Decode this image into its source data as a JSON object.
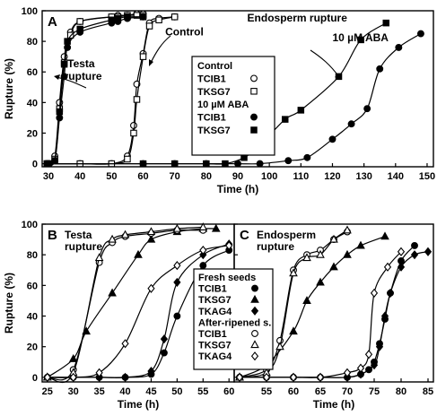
{
  "chart_data": [
    {
      "type": "line",
      "panel_label": "A",
      "xlabel": "Time (h)",
      "ylabel": "Rupture (%)",
      "xlim": [
        28,
        152
      ],
      "ylim": [
        -2,
        100
      ],
      "xticks": [
        30,
        40,
        50,
        60,
        70,
        80,
        90,
        100,
        110,
        120,
        130,
        140,
        150
      ],
      "yticks": [
        0,
        20,
        40,
        60,
        80,
        100
      ],
      "grid": false,
      "legend_position": "center",
      "legend": {
        "groups": [
          {
            "title": "Control",
            "entries": [
              {
                "label": "TCIB1",
                "marker": "circle-open"
              },
              {
                "label": "TKSG7",
                "marker": "square-open"
              }
            ]
          },
          {
            "title": "10 µM ABA",
            "entries": [
              {
                "label": "TCIB1",
                "marker": "circle-filled"
              },
              {
                "label": "TKSG7",
                "marker": "square-filled"
              }
            ]
          }
        ]
      },
      "annotations": [
        {
          "text": "Testa",
          "x": 36,
          "y": 63
        },
        {
          "text": "rupture",
          "x": 35,
          "y": 55
        },
        {
          "text": "Control",
          "x": 67,
          "y": 84
        },
        {
          "text": "Endosperm rupture",
          "x": 93,
          "y": 93
        },
        {
          "text": "10 µM ABA",
          "x": 120,
          "y": 80
        }
      ],
      "series": [
        {
          "name": "Control TCIB1 testa",
          "marker": "circle-open",
          "x": [
            29.5,
            32,
            33.5,
            35,
            37,
            40,
            50,
            52,
            55,
            58,
            60
          ],
          "y": [
            0,
            5,
            40,
            70,
            86,
            93,
            96,
            97,
            97,
            98,
            98
          ]
        },
        {
          "name": "Control TKSG7 testa",
          "marker": "square-open",
          "x": [
            29.5,
            32,
            33.5,
            35,
            37,
            40,
            50,
            52,
            55,
            58,
            60
          ],
          "y": [
            0,
            3,
            36,
            66,
            84,
            93,
            96,
            96,
            97,
            97,
            97
          ]
        },
        {
          "name": "Control TCIB1 endosperm",
          "marker": "circle-open",
          "x": [
            30,
            40,
            50,
            55,
            57,
            58,
            60,
            62,
            65,
            70
          ],
          "y": [
            0,
            0,
            0,
            5,
            25,
            52,
            72,
            92,
            95,
            96
          ]
        },
        {
          "name": "Control TKSG7 endosperm",
          "marker": "square-open",
          "x": [
            30,
            40,
            50,
            55,
            57,
            58,
            60,
            62,
            65,
            70
          ],
          "y": [
            0,
            0,
            0,
            3,
            20,
            42,
            70,
            90,
            94,
            96
          ]
        },
        {
          "name": "10 µM ABA TCIB1 testa",
          "marker": "circle-filled",
          "x": [
            29.5,
            32,
            33.5,
            35,
            36,
            40,
            50,
            52,
            55,
            60
          ],
          "y": [
            0,
            2,
            30,
            57,
            76,
            86,
            92,
            93,
            95,
            96
          ]
        },
        {
          "name": "10 µM ABA TKSG7 testa",
          "marker": "square-filled",
          "x": [
            29.5,
            32,
            33.5,
            35,
            36,
            40,
            50,
            52,
            55,
            60
          ],
          "y": [
            0,
            2,
            34,
            65,
            80,
            88,
            94,
            95,
            96,
            96
          ]
        },
        {
          "name": "10 µM ABA TCIB1 endosperm",
          "marker": "circle-filled",
          "x": [
            30,
            60,
            70,
            80,
            90,
            97,
            106,
            112,
            120,
            126,
            131,
            135,
            141,
            148
          ],
          "y": [
            0,
            0,
            0,
            0,
            0,
            0,
            2,
            4,
            16,
            26,
            36,
            62,
            76,
            85
          ]
        },
        {
          "name": "10 µM ABA TKSG7 endosperm",
          "marker": "square-filled",
          "x": [
            30,
            60,
            70,
            80,
            86,
            92,
            97,
            105,
            110,
            122,
            129,
            137
          ],
          "y": [
            0,
            0,
            0,
            0,
            0,
            4,
            12,
            29,
            35,
            57,
            81,
            92
          ]
        }
      ]
    },
    {
      "type": "line",
      "panel_label": "B",
      "title_lines": [
        "Testa",
        "rupture"
      ],
      "xlabel": "Time (h)",
      "ylabel": "Rupture (%)",
      "xlim": [
        24,
        61
      ],
      "ylim": [
        -3,
        100
      ],
      "xticks": [
        25,
        30,
        35,
        40,
        45,
        50,
        55,
        60
      ],
      "yticks": [
        0,
        20,
        40,
        60,
        80,
        100
      ],
      "grid": false,
      "series": [
        {
          "name": "Fresh seeds TCIB1",
          "marker": "circle-filled",
          "x": [
            25,
            30,
            35,
            40,
            45,
            47.5,
            50,
            55,
            60
          ],
          "y": [
            0,
            0,
            0,
            0,
            2,
            16,
            40,
            73,
            83
          ]
        },
        {
          "name": "Fresh seeds TKSG7",
          "marker": "triangle-filled",
          "x": [
            25,
            30,
            32.5,
            37.5,
            42.5,
            45,
            50,
            55,
            57.5
          ],
          "y": [
            0,
            12,
            30,
            55,
            80,
            90,
            95,
            97,
            97
          ]
        },
        {
          "name": "Fresh seeds TKAG4",
          "marker": "diamond-filled",
          "x": [
            25,
            30,
            35,
            40,
            45,
            47.5,
            50,
            55,
            60
          ],
          "y": [
            0,
            0,
            0,
            0,
            4,
            25,
            62,
            80,
            87
          ]
        },
        {
          "name": "After-ripened s. TCIB1",
          "marker": "circle-open",
          "x": [
            25,
            30,
            35,
            37.5,
            40,
            45,
            50,
            55
          ],
          "y": [
            0,
            5,
            75,
            88,
            92,
            94,
            96,
            96
          ]
        },
        {
          "name": "After-ripened s. TKSG7",
          "marker": "triangle-open",
          "x": [
            25,
            30,
            35,
            37.5,
            40,
            45,
            50,
            55
          ],
          "y": [
            0,
            3,
            78,
            90,
            93,
            95,
            97,
            98
          ]
        },
        {
          "name": "After-ripened s. TKAG4",
          "marker": "diamond-open",
          "x": [
            25,
            30,
            35,
            40,
            45,
            50,
            55,
            60
          ],
          "y": [
            0,
            0,
            3,
            22,
            58,
            73,
            83,
            86
          ]
        }
      ]
    },
    {
      "type": "line",
      "panel_label": "C",
      "title_lines": [
        "Endosperm",
        "rupture"
      ],
      "xlabel": "Time (h)",
      "xlim": [
        49,
        86
      ],
      "ylim": [
        -3,
        100
      ],
      "xticks": [
        50,
        55,
        60,
        65,
        70,
        75,
        80,
        85
      ],
      "yticks": [
        0,
        20,
        40,
        60,
        80,
        100
      ],
      "grid": false,
      "legend_position": "left",
      "legend": {
        "groups": [
          {
            "title": "Fresh seeds",
            "entries": [
              {
                "label": "TCIB1",
                "marker": "circle-filled"
              },
              {
                "label": "TKSG7",
                "marker": "triangle-filled"
              },
              {
                "label": "TKAG4",
                "marker": "diamond-filled"
              }
            ]
          },
          {
            "title": "After-ripened s.",
            "entries": [
              {
                "label": "TCIB1",
                "marker": "circle-open"
              },
              {
                "label": "TKSG7",
                "marker": "triangle-open"
              },
              {
                "label": "TKAG4",
                "marker": "diamond-open"
              }
            ]
          }
        ]
      },
      "series": [
        {
          "name": "Fresh seeds TCIB1",
          "marker": "circle-filled",
          "x": [
            50,
            55,
            60,
            65,
            70,
            72.5,
            74,
            75,
            76,
            77,
            78,
            80,
            82.5
          ],
          "y": [
            0,
            0,
            0,
            0,
            0,
            2,
            5,
            10,
            22,
            38,
            55,
            76,
            86
          ]
        },
        {
          "name": "Fresh seeds TKSG7",
          "marker": "triangle-filled",
          "x": [
            50,
            55,
            60,
            62.5,
            65,
            67.5,
            70,
            72.5,
            77
          ],
          "y": [
            0,
            8,
            30,
            50,
            62,
            72,
            80,
            86,
            92
          ]
        },
        {
          "name": "Fresh seeds TKAG4",
          "marker": "diamond-filled",
          "x": [
            50,
            55,
            60,
            65,
            70,
            72.5,
            75,
            76,
            77,
            78,
            80,
            82.5,
            85
          ],
          "y": [
            0,
            0,
            0,
            0,
            0,
            2,
            8,
            20,
            40,
            55,
            72,
            80,
            82
          ]
        },
        {
          "name": "After-ripened s. TCIB1",
          "marker": "circle-open",
          "x": [
            50,
            55,
            57.5,
            60,
            62.5,
            65,
            67.5,
            70
          ],
          "y": [
            0,
            5,
            24,
            70,
            80,
            83,
            90,
            95
          ]
        },
        {
          "name": "After-ripened s. TKSG7",
          "marker": "triangle-open",
          "x": [
            50,
            55,
            57.5,
            60,
            62.5,
            65,
            67.5,
            70
          ],
          "y": [
            0,
            3,
            20,
            68,
            78,
            80,
            90,
            96
          ]
        },
        {
          "name": "After-ripened s. TKAG4",
          "marker": "diamond-open",
          "x": [
            50,
            55,
            60,
            65,
            70,
            72.5,
            74,
            75,
            77.5,
            80
          ],
          "y": [
            0,
            0,
            0,
            0,
            3,
            6,
            15,
            55,
            72,
            82
          ]
        }
      ]
    }
  ]
}
